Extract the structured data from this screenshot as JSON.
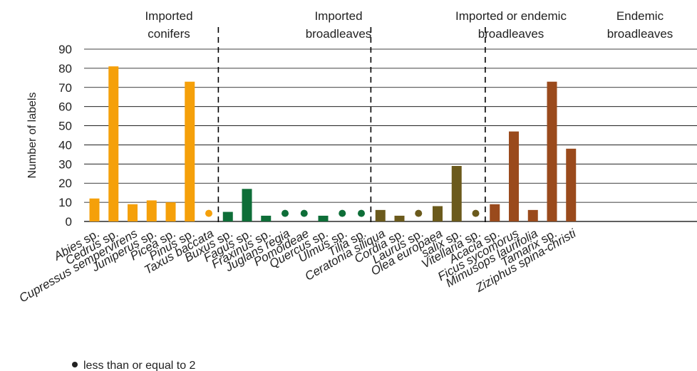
{
  "chart_data": {
    "type": "bar",
    "ylabel": "Number of labels",
    "ylim": [
      0,
      90
    ],
    "yticks": [
      0,
      10,
      20,
      30,
      40,
      50,
      60,
      70,
      80,
      90
    ],
    "grid": true,
    "groups": [
      {
        "label_lines": [
          "Imported",
          "conifers"
        ],
        "color": "#f5a00a",
        "bars": [
          {
            "name": "Abies",
            "suffix": " sp.",
            "value": 12
          },
          {
            "name": "Cedrus",
            "suffix": " sp.",
            "value": 81
          },
          {
            "name": "Cupressus sempervirens",
            "suffix": "",
            "value": 9
          },
          {
            "name": "Juniperus",
            "suffix": " sp.",
            "value": 11
          },
          {
            "name": "Picea",
            "suffix": " sp.",
            "value": 10
          },
          {
            "name": "Pinus",
            "suffix": " sp.",
            "value": 73
          },
          {
            "name": "Taxus baccata",
            "suffix": "",
            "value": 2,
            "dot": true
          }
        ]
      },
      {
        "label_lines": [
          "Imported",
          "broadleaves"
        ],
        "color": "#0e6e38",
        "bars": [
          {
            "name": "Buxus",
            "suffix": " sp.",
            "value": 5
          },
          {
            "name": "Fagus",
            "suffix": " sp.",
            "value": 17
          },
          {
            "name": "Fraxinus",
            "suffix": " sp.",
            "value": 3
          },
          {
            "name": "Juglans regia",
            "suffix": "",
            "value": 2,
            "dot": true
          },
          {
            "name": "Pomoideae",
            "suffix": "",
            "value": 2,
            "dot": true
          },
          {
            "name": "Quercus",
            "suffix": " sp.",
            "value": 3
          },
          {
            "name": "Ulmus",
            "suffix": " sp.",
            "value": 2,
            "dot": true
          },
          {
            "name": "Tilia",
            "suffix": " sp.",
            "value": 2,
            "dot": true
          }
        ]
      },
      {
        "label_lines": [
          "Imported or endemic",
          "broadleaves"
        ],
        "color": "#6b5a1c",
        "bars": [
          {
            "name": "Ceratonia siliqua",
            "suffix": "",
            "value": 6
          },
          {
            "name": "Cordia",
            "suffix": " sp.",
            "value": 3
          },
          {
            "name": "Laurus",
            "suffix": " sp.",
            "value": 2,
            "dot": true
          },
          {
            "name": "Olea europaea",
            "suffix": "",
            "value": 8
          },
          {
            "name": "salix",
            "suffix": " sp.",
            "value": 29
          },
          {
            "name": "Vitellaria",
            "suffix": " sp.",
            "value": 2,
            "dot": true
          }
        ]
      },
      {
        "label_lines": [
          "Endemic",
          "broadleaves"
        ],
        "color": "#9a4a1c",
        "bars": [
          {
            "name": "Acacia",
            "suffix": " sp.",
            "value": 9
          },
          {
            "name": "Ficus sycomorus",
            "suffix": "",
            "value": 47
          },
          {
            "name": "Mimusops laurifolia",
            "suffix": "",
            "value": 6
          },
          {
            "name": "Tamarix",
            "suffix": " sp.",
            "value": 73
          },
          {
            "name": "Ziziphus spina-christi",
            "suffix": "",
            "value": 38
          }
        ]
      }
    ],
    "legend_note": "less than or equal to 2"
  }
}
